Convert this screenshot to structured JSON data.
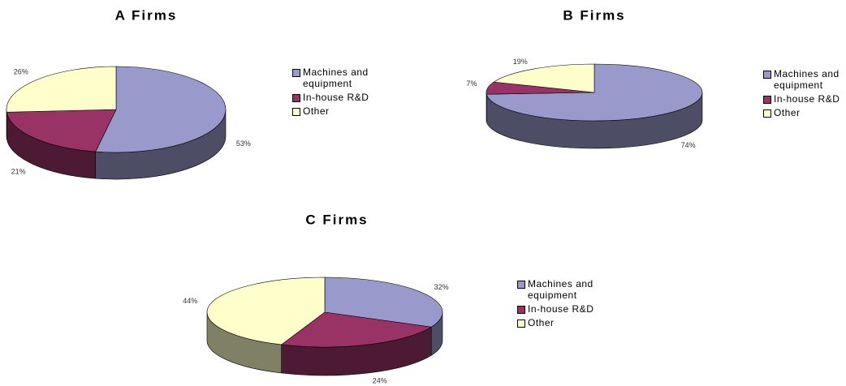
{
  "chart_data": [
    {
      "type": "pie",
      "title": "A Firms",
      "categories": [
        "Machines and equipment",
        "In-house R&D",
        "Other"
      ],
      "values": [
        53,
        21,
        26
      ],
      "value_labels": [
        "53%",
        "21%",
        "26%"
      ],
      "colors": [
        "#9999cc",
        "#993366",
        "#ffffcc"
      ]
    },
    {
      "type": "pie",
      "title": "B Firms",
      "categories": [
        "Machines and equipment",
        "In-house R&D",
        "Other"
      ],
      "values": [
        74,
        7,
        19
      ],
      "value_labels": [
        "74%",
        "7%",
        "19%"
      ],
      "colors": [
        "#9999cc",
        "#993366",
        "#ffffcc"
      ]
    },
    {
      "type": "pie",
      "title": "C Firms",
      "categories": [
        "Machines and equipment",
        "In-house R&D",
        "Other"
      ],
      "values": [
        32,
        24,
        44
      ],
      "value_labels": [
        "32%",
        "24%",
        "44%"
      ],
      "colors": [
        "#9999cc",
        "#993366",
        "#ffffcc"
      ]
    }
  ]
}
